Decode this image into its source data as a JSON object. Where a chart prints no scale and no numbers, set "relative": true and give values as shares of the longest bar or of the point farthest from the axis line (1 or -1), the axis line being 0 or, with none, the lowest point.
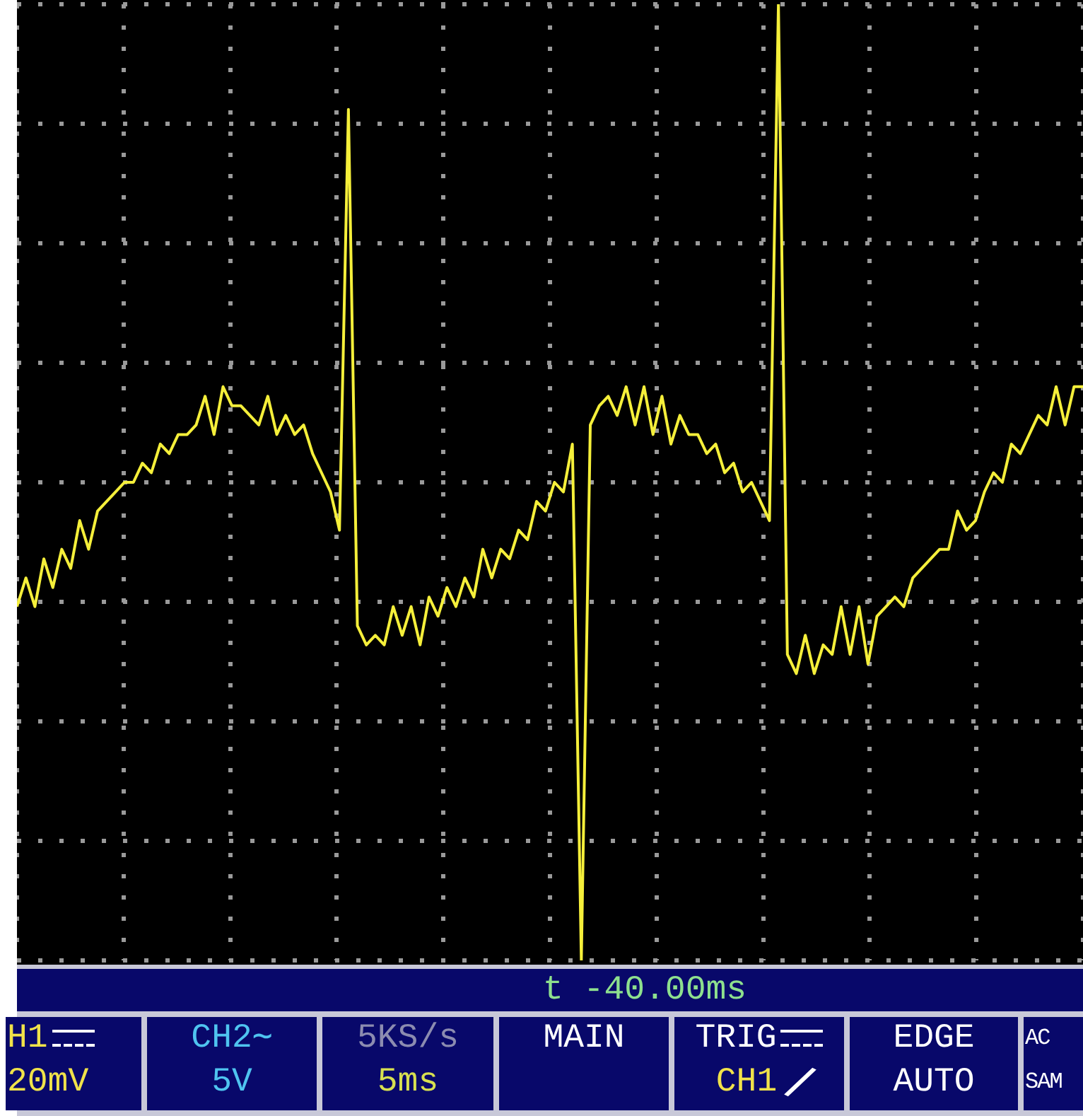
{
  "chart_data": {
    "type": "line",
    "relative": true,
    "grid": true,
    "marker": "none",
    "line_style": "solid",
    "categories": [
      null,
      null,
      null,
      null,
      null,
      null,
      null,
      null,
      null,
      null,
      null,
      null,
      null,
      null,
      null,
      null,
      null,
      null,
      null,
      null,
      null,
      null,
      null,
      null,
      null,
      null,
      null,
      null,
      null,
      null,
      null,
      null,
      null,
      null,
      null,
      null,
      null,
      null,
      null,
      null,
      null,
      null,
      null,
      null,
      null,
      null,
      null,
      null,
      null,
      null,
      null,
      null,
      null,
      null,
      null,
      null,
      null,
      null,
      null,
      null,
      null,
      null,
      null,
      null,
      null,
      null,
      null,
      null,
      null,
      null,
      null,
      null,
      null,
      null,
      null,
      null,
      null,
      null,
      null,
      null,
      null,
      null,
      null,
      null,
      null,
      null,
      null,
      null,
      null,
      null,
      null,
      null,
      null,
      null,
      null,
      null,
      null,
      null,
      null,
      null,
      null,
      null,
      null,
      null,
      null,
      null,
      null,
      null,
      null,
      null,
      null,
      null,
      null,
      null,
      null,
      null,
      null,
      null,
      null,
      null
    ],
    "series": [
      {
        "color": "#f5ef3a",
        "values": [
          0.37,
          0.4,
          0.37,
          0.42,
          0.39,
          0.43,
          0.41,
          0.46,
          0.43,
          0.47,
          0.48,
          0.49,
          0.5,
          0.5,
          0.52,
          0.51,
          0.54,
          0.53,
          0.55,
          0.55,
          0.56,
          0.59,
          0.55,
          0.6,
          0.58,
          0.58,
          0.57,
          0.56,
          0.59,
          0.55,
          0.57,
          0.55,
          0.56,
          0.53,
          0.51,
          0.49,
          0.45,
          0.89,
          0.35,
          0.33,
          0.34,
          0.33,
          0.37,
          0.34,
          0.37,
          0.33,
          0.38,
          0.36,
          0.39,
          0.37,
          0.4,
          0.38,
          0.43,
          0.4,
          0.43,
          0.42,
          0.45,
          0.44,
          0.48,
          0.47,
          0.5,
          0.49,
          0.54,
          0,
          0.56,
          0.58,
          0.59,
          0.57,
          0.6,
          0.56,
          0.6,
          0.55,
          0.59,
          0.54,
          0.57,
          0.55,
          0.55,
          0.53,
          0.54,
          0.51,
          0.52,
          0.49,
          0.5,
          0.48,
          0.46,
          1,
          0.32,
          0.3,
          0.34,
          0.3,
          0.33,
          0.32,
          0.37,
          0.32,
          0.37,
          0.31,
          0.36,
          0.37,
          0.38,
          0.37,
          0.4,
          0.41,
          0.42,
          0.43,
          0.43,
          0.47,
          0.45,
          0.46,
          0.49,
          0.51,
          0.5,
          0.54,
          0.53,
          0.55,
          0.57,
          0.56,
          0.6,
          0.56,
          0.6,
          0.6
        ]
      }
    ],
    "annotations": [
      "t -40.00ms",
      "H1",
      "20mV",
      "CH2∼",
      "5V",
      "5KS/s",
      "5ms",
      "MAIN",
      "TRIG",
      "CH1",
      "EDGE",
      "AUTO",
      "AC",
      "SAM"
    ]
  }
}
